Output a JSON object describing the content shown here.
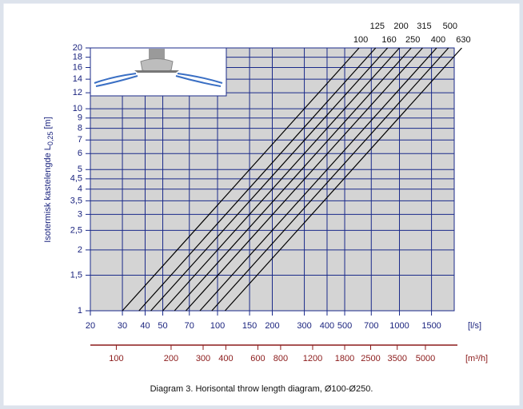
{
  "chart_data": {
    "type": "line",
    "y_label": "Isotermisk kastelengde L",
    "y_label_sub": "0,25",
    "y_label_unit": " [m]",
    "x_label": "[l/s]",
    "x2_label": "[m³/h]",
    "caption": "Diagram 3. Horisontal throw length diagram, Ø100-Ø250.",
    "log_x": true,
    "log_y": true,
    "grid": true,
    "xlim": [
      20,
      2000
    ],
    "xticks": [
      20,
      30,
      40,
      50,
      70,
      100,
      150,
      200,
      300,
      400,
      500,
      700,
      1000,
      1500
    ],
    "x2lim": [
      72,
      7200
    ],
    "x2ticks": [
      100,
      200,
      300,
      400,
      600,
      800,
      1200,
      1800,
      2500,
      3500,
      5000
    ],
    "ylim": [
      1,
      20
    ],
    "yticks": [
      1,
      {
        "value": 1.5,
        "label": "1,5"
      },
      2,
      {
        "value": 2.5,
        "label": "2,5"
      },
      3,
      {
        "value": 3.5,
        "label": "3,5"
      },
      4,
      {
        "value": 4.5,
        "label": "4,5"
      },
      5,
      6,
      7,
      8,
      9,
      10,
      12,
      14,
      16,
      18,
      20
    ],
    "series": [
      {
        "name": "100",
        "color": "#000000",
        "x": [
          30,
          600
        ],
        "values": [
          1,
          20
        ]
      },
      {
        "name": "125",
        "color": "#000000",
        "x": [
          37,
          740
        ],
        "values": [
          1,
          20
        ]
      },
      {
        "name": "160",
        "color": "#000000",
        "x": [
          43,
          860
        ],
        "values": [
          1,
          20
        ]
      },
      {
        "name": "200",
        "color": "#000000",
        "x": [
          50,
          1000
        ],
        "values": [
          1,
          20
        ]
      },
      {
        "name": "250",
        "color": "#000000",
        "x": [
          58,
          1160
        ],
        "values": [
          1,
          20
        ]
      },
      {
        "name": "315",
        "color": "#000000",
        "x": [
          67,
          1340
        ],
        "values": [
          1,
          20
        ]
      },
      {
        "name": "400",
        "color": "#000000",
        "x": [
          80,
          1600
        ],
        "values": [
          1,
          20
        ]
      },
      {
        "name": "500",
        "color": "#000000",
        "x": [
          93,
          1860
        ],
        "values": [
          1,
          20
        ]
      },
      {
        "name": "630",
        "color": "#000000",
        "x": [
          110,
          2200
        ],
        "values": [
          1,
          20
        ]
      }
    ]
  }
}
